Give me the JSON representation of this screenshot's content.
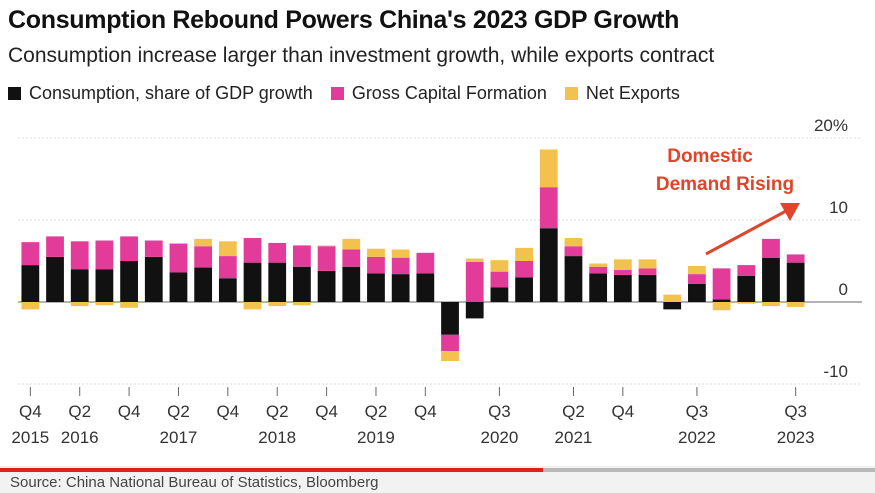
{
  "title": "Consumption Rebound Powers China's 2023 GDP Growth",
  "subtitle": "Consumption increase larger than investment growth, while exports contract",
  "colors": {
    "consumption": "#111111",
    "capital": "#e23b9a",
    "netExports": "#f2c14e",
    "annotation": "#e0442a",
    "arrow": "#e0442a"
  },
  "legend": [
    {
      "label": "Consumption, share of GDP growth",
      "color": "#111111"
    },
    {
      "label": "Gross Capital Formation",
      "color": "#e23b9a"
    },
    {
      "label": "Net Exports",
      "color": "#f2c14e"
    }
  ],
  "annotation": {
    "line1": "Domestic",
    "line2": "Demand Rising"
  },
  "source": "Source: China National Bureau of Statistics, Bloomberg",
  "video_progress": 0.62,
  "chart_data": {
    "type": "bar",
    "stacked": true,
    "ylim": [
      -10,
      20
    ],
    "yticks": [
      {
        "value": 20,
        "label": "20%"
      },
      {
        "value": 10,
        "label": "10"
      },
      {
        "value": 0,
        "label": "0"
      },
      {
        "value": -10,
        "label": "-10"
      }
    ],
    "categories": [
      "Q4 2015",
      "Q1 2016",
      "Q2 2016",
      "Q3 2016",
      "Q4 2016",
      "Q1 2017",
      "Q2 2017",
      "Q3 2017",
      "Q4 2017",
      "Q1 2018",
      "Q2 2018",
      "Q3 2018",
      "Q4 2018",
      "Q1 2019",
      "Q2 2019",
      "Q3 2019",
      "Q4 2019",
      "Q1 2020",
      "Q2 2020",
      "Q3 2020",
      "Q4 2020",
      "Q1 2021",
      "Q2 2021",
      "Q3 2021",
      "Q4 2021",
      "Q1 2022",
      "Q2 2022",
      "Q3 2022",
      "Q4 2022",
      "Q1 2023",
      "Q2 2023",
      "Q3 2023"
    ],
    "xticks": [
      {
        "index": 0,
        "line1": "Q4",
        "line2": "2015"
      },
      {
        "index": 2,
        "line1": "Q2",
        "line2": "2016"
      },
      {
        "index": 4,
        "line1": "Q4",
        "line2": ""
      },
      {
        "index": 6,
        "line1": "Q2",
        "line2": "2017"
      },
      {
        "index": 8,
        "line1": "Q4",
        "line2": ""
      },
      {
        "index": 10,
        "line1": "Q2",
        "line2": "2018"
      },
      {
        "index": 12,
        "line1": "Q4",
        "line2": ""
      },
      {
        "index": 14,
        "line1": "Q2",
        "line2": "2019"
      },
      {
        "index": 16,
        "line1": "Q4",
        "line2": ""
      },
      {
        "index": 19,
        "line1": "Q3",
        "line2": "2020"
      },
      {
        "index": 22,
        "line1": "Q2",
        "line2": "2021"
      },
      {
        "index": 24,
        "line1": "Q4",
        "line2": ""
      },
      {
        "index": 27,
        "line1": "Q3",
        "line2": "2022"
      },
      {
        "index": 31,
        "line1": "Q3",
        "line2": "2023"
      }
    ],
    "series": [
      {
        "name": "Consumption, share of GDP growth",
        "color": "#111111",
        "values": [
          4.5,
          5.5,
          4.0,
          4.0,
          5.0,
          5.5,
          3.6,
          4.2,
          2.9,
          4.8,
          4.8,
          4.3,
          3.8,
          4.3,
          3.5,
          3.4,
          3.5,
          -4.0,
          -2.0,
          1.8,
          3.0,
          9.0,
          5.6,
          3.5,
          3.3,
          3.3,
          -0.9,
          2.2,
          0.3,
          3.2,
          5.4,
          4.8
        ]
      },
      {
        "name": "Gross Capital Formation",
        "color": "#e23b9a",
        "values": [
          2.8,
          2.5,
          3.4,
          3.5,
          3.0,
          2.0,
          3.5,
          2.6,
          2.7,
          3.0,
          2.4,
          2.6,
          3.0,
          2.1,
          2.0,
          2.0,
          2.5,
          -2.0,
          4.9,
          1.9,
          2.0,
          5.0,
          1.2,
          0.8,
          0.6,
          0.8,
          0.0,
          1.2,
          3.8,
          1.3,
          2.3,
          1.0
        ]
      },
      {
        "name": "Net Exports",
        "color": "#f2c14e",
        "values": [
          -0.9,
          0,
          -0.5,
          -0.4,
          -0.7,
          0,
          0.1,
          0.9,
          1.8,
          -0.9,
          -0.5,
          -0.4,
          0.1,
          1.3,
          1.0,
          1.0,
          0,
          -1.2,
          0.4,
          1.4,
          1.6,
          4.6,
          1.0,
          0.4,
          1.3,
          1.1,
          0.9,
          1.0,
          -1.0,
          -0.2,
          -0.5,
          -0.6
        ]
      }
    ]
  }
}
